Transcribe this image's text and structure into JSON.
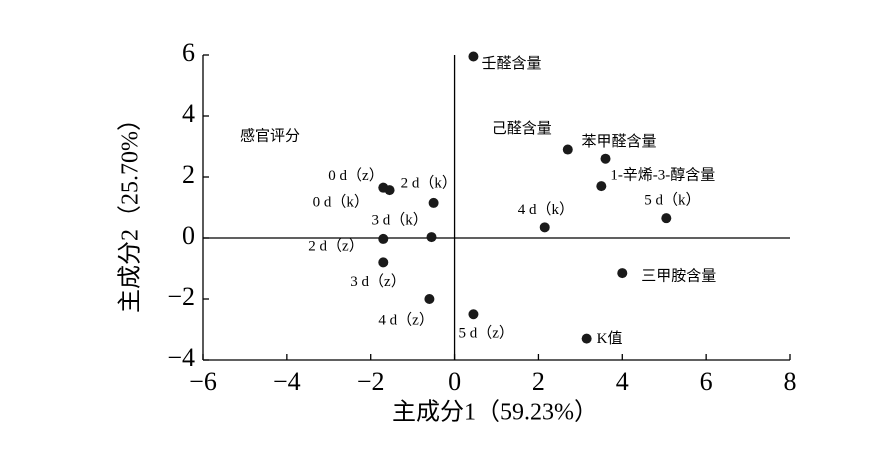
{
  "chart_data": {
    "type": "scatter",
    "x_label": "主成分1（59.23%）",
    "y_label": "主成分2（25.70%）",
    "annotation": "感官评分",
    "xlim": [
      -6,
      8
    ],
    "ylim": [
      -4,
      6
    ],
    "xticks": [
      {
        "value": -6,
        "label": "−6"
      },
      {
        "value": -4,
        "label": "−4"
      },
      {
        "value": -2,
        "label": "−2"
      },
      0,
      2,
      4,
      6,
      8
    ],
    "yticks": [
      {
        "value": -4,
        "label": "−4"
      },
      {
        "value": -2,
        "label": "−2"
      },
      0,
      2,
      4,
      6
    ],
    "color": "#1a1a1a",
    "labels": [
      "壬醛含量",
      "己醛含量",
      "苯甲醛含量",
      "1-辛烯-3-醇含量",
      "5 d（k）",
      "4 d（k）",
      "三甲胺含量",
      "K值",
      "5 d（z）",
      "4 d（z）",
      "3 d（z）",
      "2 d（z）",
      "3 d（k）",
      "2 d（k）",
      "0 d（z）",
      "0 d（k）"
    ],
    "x": [
      0.45,
      2.7,
      3.6,
      3.5,
      5.05,
      2.15,
      4.0,
      3.15,
      0.45,
      -0.6,
      -1.7,
      -1.7,
      -0.55,
      -0.5,
      -1.7,
      -1.55
    ],
    "values": [
      5.95,
      2.9,
      2.6,
      1.7,
      0.65,
      0.35,
      -1.15,
      -3.3,
      -2.5,
      -2.0,
      -0.8,
      -0.03,
      0.03,
      1.15,
      1.65,
      1.57
    ]
  }
}
